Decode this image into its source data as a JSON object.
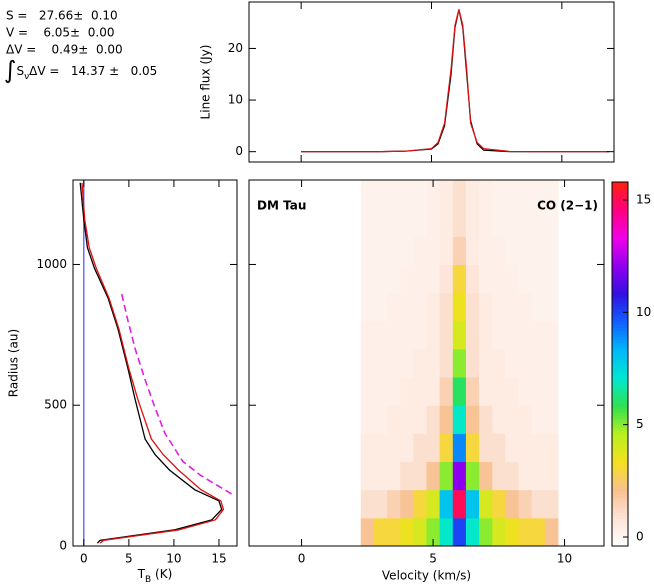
{
  "chart_data": [
    {
      "type": "line",
      "ylabel": "Line flux (Jy)",
      "annotations": [
        "S =   27.66±  0.10",
        "V =    6.05±  0.00",
        "ΔV =    0.49±  0.00",
        [
          "∫",
          "S",
          "ν",
          "ΔV =   14.37 ±   0.05"
        ]
      ],
      "xlim": [
        -2,
        12
      ],
      "ylim": [
        -2,
        29
      ],
      "xticks": [
        0,
        5,
        10
      ],
      "yticks": [
        0,
        10,
        20
      ],
      "xticklabels": false,
      "x": [
        0,
        1,
        2,
        3,
        4,
        5,
        5.25,
        5.5,
        5.75,
        5.9,
        6.05,
        6.2,
        6.35,
        6.5,
        6.75,
        7,
        8,
        9,
        10,
        11,
        11.8
      ],
      "series": [
        {
          "color": "#000000",
          "values": [
            0,
            0,
            0,
            0,
            0.1,
            0.5,
            1.5,
            5,
            15,
            24,
            27.5,
            24,
            15,
            6,
            1.5,
            0.3,
            0,
            0,
            0,
            0,
            0
          ]
        },
        {
          "color": "#e01010",
          "values": [
            0,
            0,
            0,
            0,
            0.1,
            0.6,
            1.8,
            5.5,
            16,
            24.5,
            27.6,
            24.5,
            16,
            5.5,
            1.8,
            0.6,
            0.05,
            0,
            0,
            0,
            0
          ]
        }
      ]
    },
    {
      "type": "profile",
      "ylabel": "Radius (au)",
      "xlabel": [
        "T",
        "B",
        " (K)"
      ],
      "xlim": [
        -1.2,
        17
      ],
      "ylim": [
        0,
        1300
      ],
      "xticks": [
        0,
        5,
        10,
        15
      ],
      "yticks": [
        0,
        500,
        1000
      ],
      "vline": {
        "x": 0,
        "color": "#4a4aff"
      },
      "series": [
        {
          "color": "#000000",
          "dash": false,
          "y": [
            10,
            20,
            57,
            93,
            130,
            160,
            200,
            270,
            325,
            380,
            520,
            630,
            770,
            880,
            985,
            1060,
            1160,
            1290
          ],
          "values": [
            1.5,
            1.8,
            10,
            14.2,
            15.3,
            15,
            12.3,
            9.5,
            7.9,
            6.8,
            5.7,
            4.9,
            3.8,
            2.7,
            1.2,
            0.4,
            0,
            -0.4
          ]
        },
        {
          "color": "#e01010",
          "dash": false,
          "y": [
            10,
            20,
            57,
            93,
            130,
            160,
            200,
            270,
            325,
            380,
            520,
            630,
            770,
            880,
            985,
            1060,
            1160,
            1290
          ],
          "values": [
            1.8,
            2.2,
            10.5,
            14.6,
            15.5,
            15.2,
            13,
            10.5,
            8.8,
            7.5,
            6,
            5,
            3.9,
            2.8,
            1.4,
            0.6,
            0.1,
            -0.2
          ]
        },
        {
          "color": "#e020e0",
          "dash": true,
          "y": [
            185,
            250,
            300,
            400,
            500,
            600,
            700,
            800,
            896
          ],
          "values": [
            16.4,
            13,
            11,
            9,
            7.8,
            6.7,
            5.7,
            4.9,
            4.2
          ]
        }
      ]
    },
    {
      "type": "heatmap",
      "annotations": [
        "DM Tau",
        "CO (2−1)"
      ],
      "xlabel": "Velocity (km/s)",
      "xlim": [
        -2,
        11.5
      ],
      "ylim": [
        0,
        1300
      ],
      "xticks": [
        0,
        5,
        10
      ],
      "yticks": [
        0,
        500,
        1000
      ],
      "yticklabels": false,
      "x_bins": [
        2.25,
        2.75,
        3.25,
        3.75,
        4.25,
        4.75,
        5.25,
        5.75,
        6.25,
        6.75,
        7.25,
        7.75,
        8.25,
        8.75,
        9.25,
        9.75
      ],
      "y_bins": [
        0,
        100,
        200,
        300,
        400,
        500,
        600,
        700,
        800,
        900,
        1000,
        1100,
        1200,
        1300
      ],
      "z": [
        [
          2,
          3,
          3,
          3.5,
          4,
          5,
          7,
          10,
          7,
          5,
          4,
          3.5,
          3,
          3,
          2
        ],
        [
          1,
          1,
          1.5,
          2,
          3,
          4,
          8,
          15,
          8,
          4,
          3,
          2,
          1.5,
          1,
          1
        ],
        [
          0.5,
          0.5,
          0.5,
          1,
          1,
          2,
          5,
          12,
          5,
          2,
          1,
          1,
          0.5,
          0.5,
          0.5
        ],
        [
          0.5,
          0.5,
          0.5,
          0.5,
          1,
          1,
          3,
          9,
          3,
          1,
          1,
          0.5,
          0.5,
          0.5,
          0.5
        ],
        [
          0.3,
          0.3,
          0.5,
          0.5,
          0.5,
          1,
          2,
          7,
          2,
          1,
          0.5,
          0.5,
          0.5,
          0.3,
          0.3
        ],
        [
          0.3,
          0.3,
          0.3,
          0.5,
          0.5,
          0.5,
          1.5,
          6,
          1.5,
          0.5,
          0.5,
          0.5,
          0.3,
          0.3,
          0.3
        ],
        [
          0.3,
          0.3,
          0.3,
          0.3,
          0.5,
          0.5,
          1,
          5,
          1,
          0.5,
          0.5,
          0.3,
          0.3,
          0.3,
          0.3
        ],
        [
          0.3,
          0.3,
          0.3,
          0.3,
          0.3,
          0.5,
          1,
          4,
          1,
          0.5,
          0.3,
          0.3,
          0.3,
          0.3,
          0.3
        ],
        [
          0.2,
          0.2,
          0.3,
          0.3,
          0.3,
          0.5,
          1,
          3.5,
          1,
          0.5,
          0.3,
          0.3,
          0.3,
          0.2,
          0.2
        ],
        [
          0.2,
          0.2,
          0.2,
          0.3,
          0.3,
          0.3,
          0.8,
          3,
          0.8,
          0.3,
          0.3,
          0.3,
          0.2,
          0.2,
          0.2
        ],
        [
          0.2,
          0.2,
          0.2,
          0.2,
          0.3,
          0.3,
          0.5,
          1.5,
          0.5,
          0.3,
          0.3,
          0.2,
          0.2,
          0.2,
          0.2
        ],
        [
          0.2,
          0.2,
          0.2,
          0.2,
          0.2,
          0.3,
          0.5,
          1,
          0.5,
          0.3,
          0.2,
          0.2,
          0.2,
          0.2,
          0.2
        ],
        [
          0.2,
          0.2,
          0.2,
          0.2,
          0.2,
          0.3,
          0.5,
          1,
          0.5,
          0.3,
          0.2,
          0.2,
          0.2,
          0.2,
          0.2
        ]
      ],
      "colormap": [
        "#ffffff",
        "#fde4d8",
        "#f8c090",
        "#f5e020",
        "#b8f020",
        "#30e050",
        "#00e8d0",
        "#00b8f8",
        "#1060ff",
        "#3010e0",
        "#9000f0",
        "#f000e8",
        "#ff0080",
        "#ff2010"
      ],
      "zlim": [
        -0.4,
        15.8
      ],
      "zticks": [
        0,
        5,
        10,
        15
      ]
    }
  ]
}
